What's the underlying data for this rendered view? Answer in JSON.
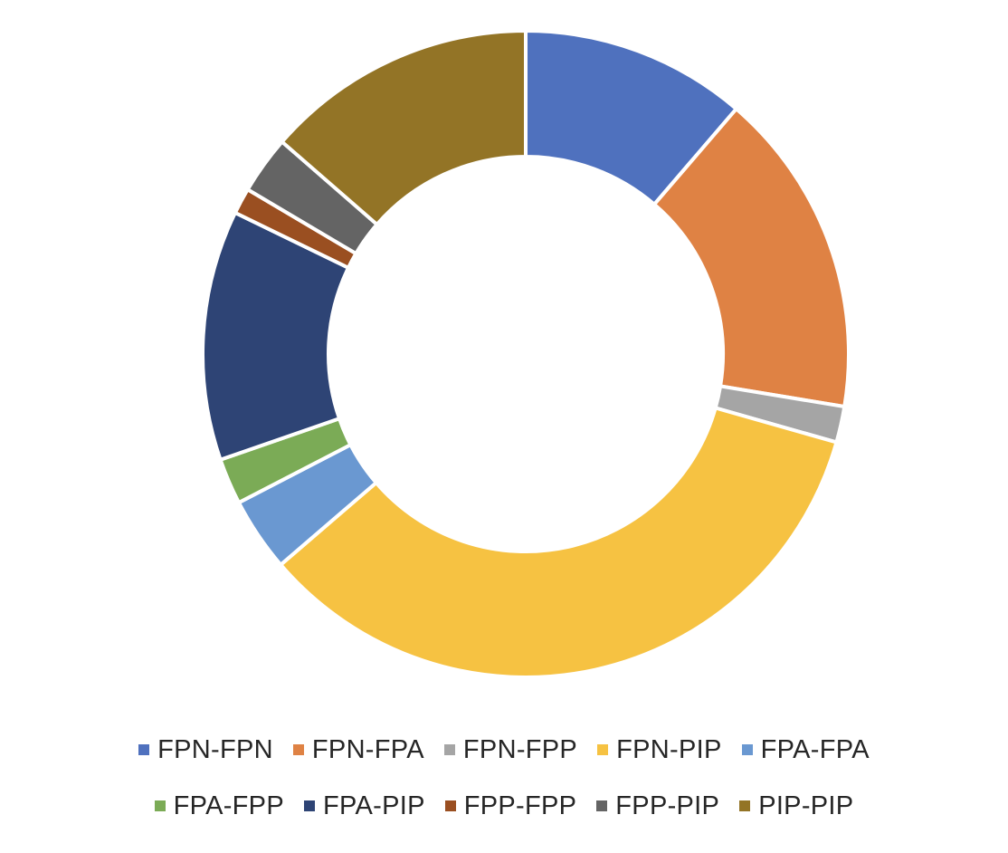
{
  "chart_data": {
    "type": "pie",
    "variant": "donut",
    "title": "",
    "legend_position": "bottom",
    "categories": [
      "FPN-FPN",
      "FPN-FPA",
      "FPN-FPP",
      "FPN-PIP",
      "FPA-FPA",
      "FPA-FPP",
      "FPA-PIP",
      "FPP-FPP",
      "FPP-PIP",
      "PIP-PIP"
    ],
    "values": [
      11.3,
      16.3,
      1.8,
      34.3,
      3.7,
      2.3,
      12.5,
      1.3,
      2.9,
      13.6
    ],
    "colors": [
      "#4F71BE",
      "#DF8244",
      "#A5A5A5",
      "#F6C242",
      "#6A98D1",
      "#7BAB56",
      "#2E4475",
      "#9A4F21",
      "#646464",
      "#937426"
    ]
  }
}
